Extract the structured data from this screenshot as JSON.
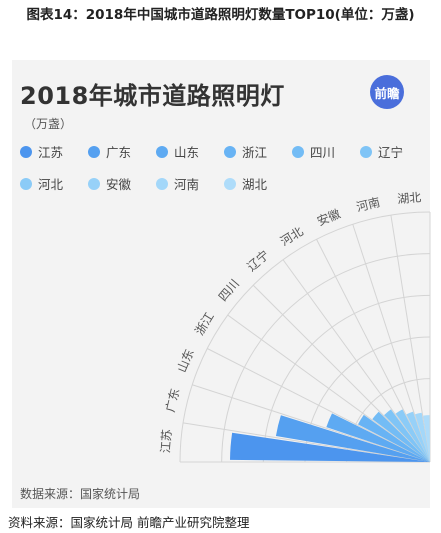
{
  "figure_caption": "图表14：2018年中国城市道路照明灯数量TOP10(单位：万盏)",
  "brand_badge": "前瞻",
  "source_note": "数据来源：国家统计局",
  "footer": "资料来源：国家统计局  前瞻产业研究院整理",
  "chart_data": {
    "type": "bar",
    "subtype": "polar-sector",
    "title": "2018年城市道路照明灯",
    "unit": "（万盏）",
    "categories": [
      "江苏",
      "广东",
      "山东",
      "浙江",
      "四川",
      "辽宁",
      "河北",
      "安徽",
      "河南",
      "湖北"
    ],
    "values": [
      320,
      250,
      175,
      130,
      115,
      105,
      95,
      85,
      80,
      75
    ],
    "colors": [
      "#4c95ee",
      "#55a0f0",
      "#5eaaf2",
      "#68b3f4",
      "#73bcf5",
      "#7fc4f6",
      "#8bcbf7",
      "#97d1f8",
      "#a3d7f9",
      "#aedcfa"
    ],
    "grid": true,
    "legend": "top-left"
  }
}
